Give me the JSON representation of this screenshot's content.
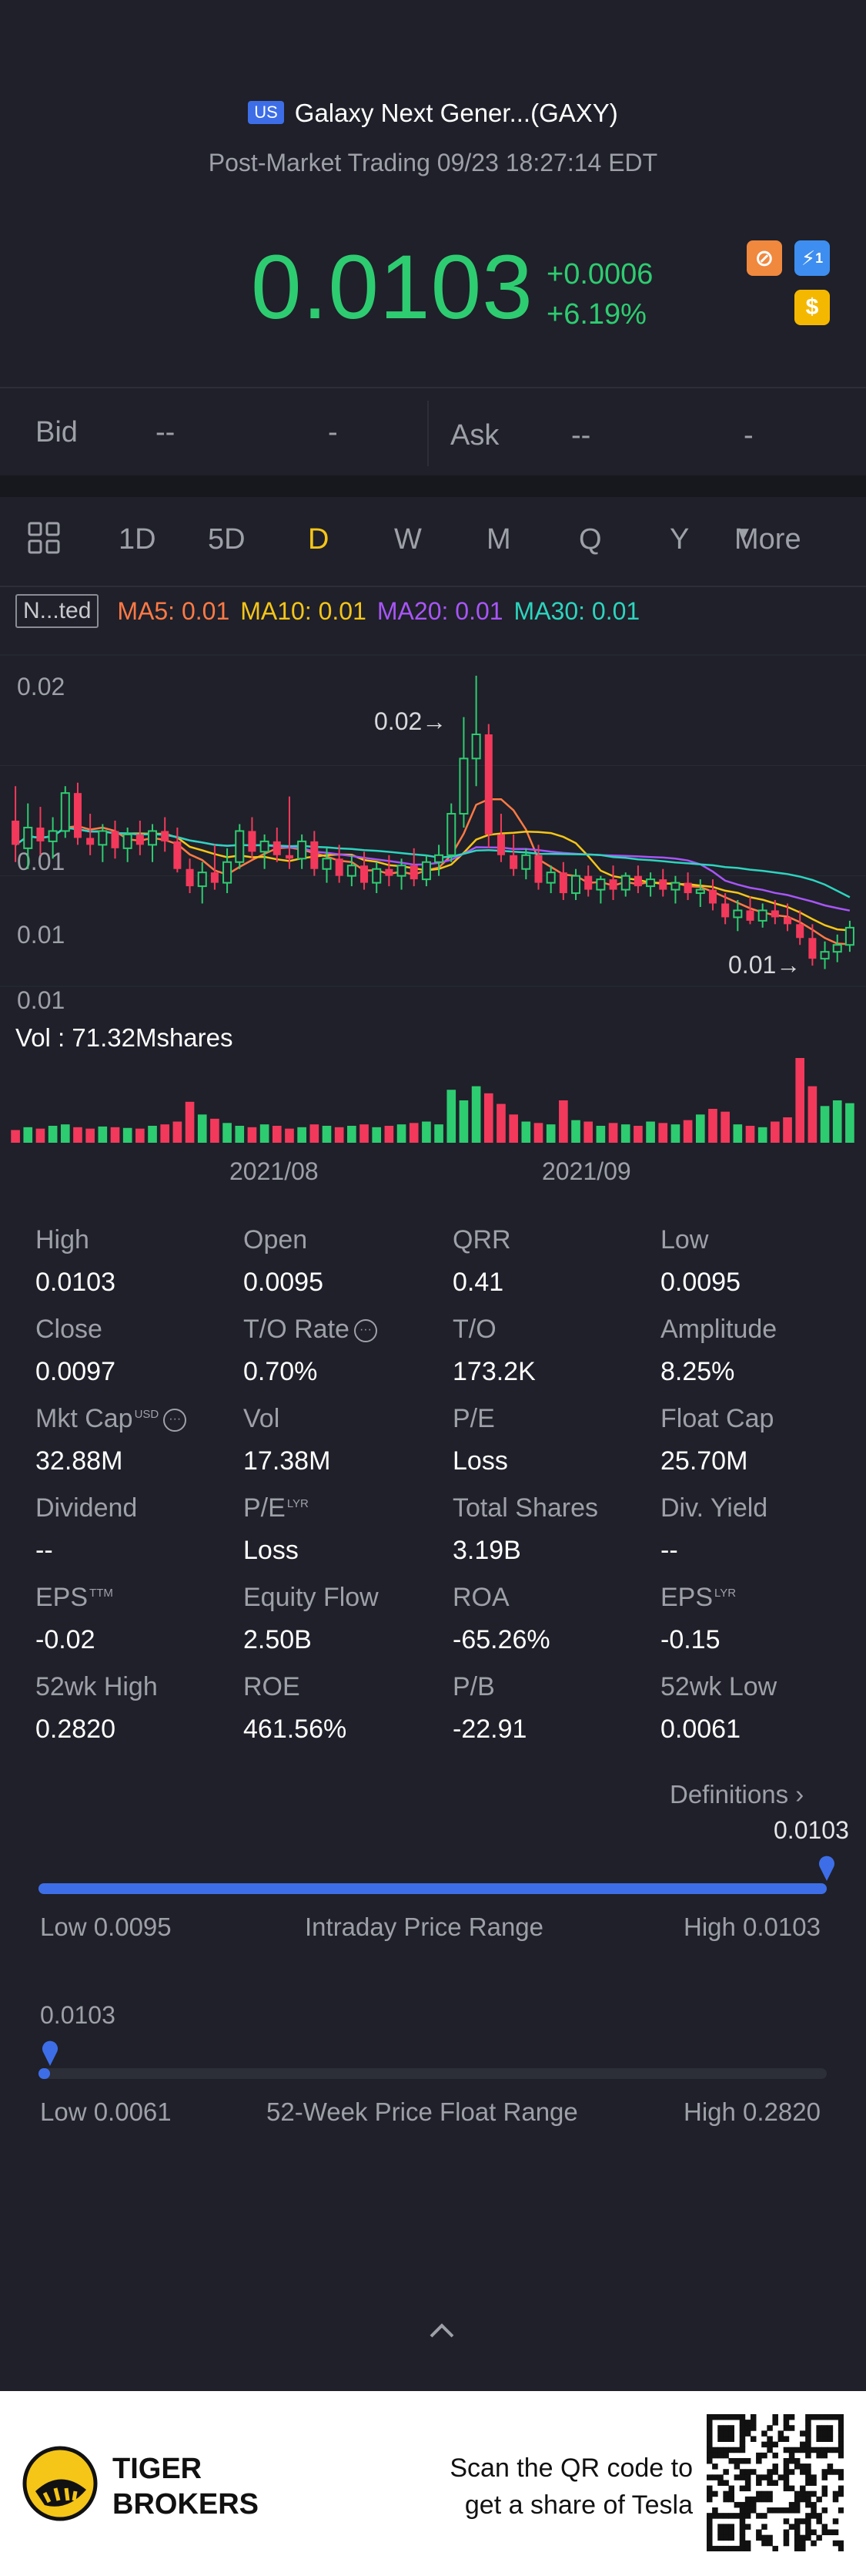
{
  "header": {
    "market_badge": "US",
    "title": "Galaxy Next Gener...(GAXY)",
    "subtitle": "Post-Market Trading 09/23 18:27:14 EDT"
  },
  "quote": {
    "price": "0.0103",
    "change": "+0.0006",
    "change_pct": "+6.19%",
    "up_color": "#2ecc71",
    "down_color": "#f2395b"
  },
  "badges": [
    {
      "name": "no-entry-icon",
      "glyph": "⊘",
      "color": "#f0883e"
    },
    {
      "name": "lightning-icon",
      "glyph": "⚡",
      "color": "#3d8ef0",
      "count": "1"
    },
    {
      "name": "dollar-icon",
      "glyph": "$",
      "color": "#f5b800"
    }
  ],
  "bidask": {
    "bid_label": "Bid",
    "bid_price": "--",
    "bid_size": "-",
    "ask_label": "Ask",
    "ask_price": "--",
    "ask_size": "-"
  },
  "periods": {
    "items": [
      "1D",
      "5D",
      "D",
      "W",
      "M",
      "Q",
      "Y"
    ],
    "active": "D",
    "more_label": "More",
    "active_color": "#f5c518"
  },
  "indicators": {
    "selector_label": "N...ted",
    "ma5": "MA5: 0.01",
    "ma10": "MA10: 0.01",
    "ma20": "MA20: 0.01",
    "ma30": "MA30: 0.01",
    "ma5_color": "#ff7a45",
    "ma10_color": "#f5c518",
    "ma20_color": "#a855f7",
    "ma30_color": "#2dd4bf"
  },
  "chart_data": {
    "type": "candlestick",
    "y_tick_labels": [
      "0.02",
      "0.01",
      "0.01",
      "0.01"
    ],
    "x_tick_labels": [
      "2021/08",
      "2021/09"
    ],
    "annotations": {
      "high_marker": "0.02→",
      "low_marker": "0.01→"
    },
    "volume_label": "Vol   : 71.32Mshares",
    "candles": [
      {
        "o": 0.012,
        "h": 0.013,
        "l": 0.0108,
        "c": 0.0113
      },
      {
        "o": 0.0112,
        "h": 0.0125,
        "l": 0.0106,
        "c": 0.0118
      },
      {
        "o": 0.0118,
        "h": 0.0124,
        "l": 0.011,
        "c": 0.0114
      },
      {
        "o": 0.0114,
        "h": 0.0121,
        "l": 0.0109,
        "c": 0.0117
      },
      {
        "o": 0.0117,
        "h": 0.013,
        "l": 0.0115,
        "c": 0.0128
      },
      {
        "o": 0.0128,
        "h": 0.0131,
        "l": 0.0113,
        "c": 0.0115
      },
      {
        "o": 0.0115,
        "h": 0.0122,
        "l": 0.011,
        "c": 0.0113
      },
      {
        "o": 0.0113,
        "h": 0.0119,
        "l": 0.0108,
        "c": 0.0117
      },
      {
        "o": 0.0117,
        "h": 0.012,
        "l": 0.0109,
        "c": 0.0112
      },
      {
        "o": 0.0112,
        "h": 0.0118,
        "l": 0.0108,
        "c": 0.0116
      },
      {
        "o": 0.0116,
        "h": 0.012,
        "l": 0.011,
        "c": 0.0113
      },
      {
        "o": 0.0113,
        "h": 0.0119,
        "l": 0.0108,
        "c": 0.0117
      },
      {
        "o": 0.0117,
        "h": 0.0121,
        "l": 0.0111,
        "c": 0.0114
      },
      {
        "o": 0.0114,
        "h": 0.0118,
        "l": 0.0105,
        "c": 0.0106
      },
      {
        "o": 0.0106,
        "h": 0.0109,
        "l": 0.0099,
        "c": 0.0101
      },
      {
        "o": 0.0101,
        "h": 0.0108,
        "l": 0.0096,
        "c": 0.0105
      },
      {
        "o": 0.0105,
        "h": 0.0113,
        "l": 0.01,
        "c": 0.0102
      },
      {
        "o": 0.0102,
        "h": 0.0112,
        "l": 0.0099,
        "c": 0.0108
      },
      {
        "o": 0.0108,
        "h": 0.0119,
        "l": 0.0106,
        "c": 0.0117
      },
      {
        "o": 0.0117,
        "h": 0.0121,
        "l": 0.0109,
        "c": 0.0111
      },
      {
        "o": 0.0111,
        "h": 0.0116,
        "l": 0.0106,
        "c": 0.0114
      },
      {
        "o": 0.0114,
        "h": 0.0118,
        "l": 0.0108,
        "c": 0.011
      },
      {
        "o": 0.011,
        "h": 0.0127,
        "l": 0.0106,
        "c": 0.0109
      },
      {
        "o": 0.0109,
        "h": 0.0116,
        "l": 0.0106,
        "c": 0.0114
      },
      {
        "o": 0.0114,
        "h": 0.0117,
        "l": 0.0104,
        "c": 0.0106
      },
      {
        "o": 0.0106,
        "h": 0.0112,
        "l": 0.0102,
        "c": 0.0109
      },
      {
        "o": 0.0109,
        "h": 0.0113,
        "l": 0.0102,
        "c": 0.0104
      },
      {
        "o": 0.0104,
        "h": 0.011,
        "l": 0.0101,
        "c": 0.0107
      },
      {
        "o": 0.0107,
        "h": 0.0111,
        "l": 0.01,
        "c": 0.0102
      },
      {
        "o": 0.0102,
        "h": 0.0108,
        "l": 0.0099,
        "c": 0.0106
      },
      {
        "o": 0.0106,
        "h": 0.011,
        "l": 0.0101,
        "c": 0.0104
      },
      {
        "o": 0.0104,
        "h": 0.0109,
        "l": 0.01,
        "c": 0.0107
      },
      {
        "o": 0.0107,
        "h": 0.0112,
        "l": 0.0101,
        "c": 0.0103
      },
      {
        "o": 0.0103,
        "h": 0.011,
        "l": 0.0101,
        "c": 0.0108
      },
      {
        "o": 0.0108,
        "h": 0.0113,
        "l": 0.0104,
        "c": 0.011
      },
      {
        "o": 0.011,
        "h": 0.0125,
        "l": 0.0108,
        "c": 0.0122
      },
      {
        "o": 0.0122,
        "h": 0.015,
        "l": 0.0118,
        "c": 0.0138
      },
      {
        "o": 0.0138,
        "h": 0.0162,
        "l": 0.013,
        "c": 0.0145
      },
      {
        "o": 0.0145,
        "h": 0.0148,
        "l": 0.0112,
        "c": 0.0116
      },
      {
        "o": 0.0116,
        "h": 0.0122,
        "l": 0.0108,
        "c": 0.011
      },
      {
        "o": 0.011,
        "h": 0.0116,
        "l": 0.0104,
        "c": 0.0106
      },
      {
        "o": 0.0106,
        "h": 0.0112,
        "l": 0.0103,
        "c": 0.011
      },
      {
        "o": 0.011,
        "h": 0.0113,
        "l": 0.01,
        "c": 0.0102
      },
      {
        "o": 0.0102,
        "h": 0.0107,
        "l": 0.0099,
        "c": 0.0105
      },
      {
        "o": 0.0105,
        "h": 0.0108,
        "l": 0.0097,
        "c": 0.0099
      },
      {
        "o": 0.0099,
        "h": 0.0106,
        "l": 0.0097,
        "c": 0.0104
      },
      {
        "o": 0.0104,
        "h": 0.0107,
        "l": 0.0098,
        "c": 0.01
      },
      {
        "o": 0.01,
        "h": 0.0104,
        "l": 0.0096,
        "c": 0.0103
      },
      {
        "o": 0.0103,
        "h": 0.0107,
        "l": 0.0097,
        "c": 0.01
      },
      {
        "o": 0.01,
        "h": 0.0105,
        "l": 0.0098,
        "c": 0.0104
      },
      {
        "o": 0.0104,
        "h": 0.0107,
        "l": 0.0099,
        "c": 0.0101
      },
      {
        "o": 0.0101,
        "h": 0.0105,
        "l": 0.0098,
        "c": 0.0103
      },
      {
        "o": 0.0103,
        "h": 0.0106,
        "l": 0.0098,
        "c": 0.01
      },
      {
        "o": 0.01,
        "h": 0.0104,
        "l": 0.0096,
        "c": 0.0102
      },
      {
        "o": 0.0102,
        "h": 0.0105,
        "l": 0.0097,
        "c": 0.0099
      },
      {
        "o": 0.0099,
        "h": 0.0103,
        "l": 0.0095,
        "c": 0.01
      },
      {
        "o": 0.01,
        "h": 0.0103,
        "l": 0.0094,
        "c": 0.0096
      },
      {
        "o": 0.0096,
        "h": 0.0099,
        "l": 0.009,
        "c": 0.0092
      },
      {
        "o": 0.0092,
        "h": 0.0097,
        "l": 0.0088,
        "c": 0.0094
      },
      {
        "o": 0.0094,
        "h": 0.0098,
        "l": 0.009,
        "c": 0.0091
      },
      {
        "o": 0.0091,
        "h": 0.0096,
        "l": 0.0089,
        "c": 0.0094
      },
      {
        "o": 0.0094,
        "h": 0.0097,
        "l": 0.009,
        "c": 0.0092
      },
      {
        "o": 0.0092,
        "h": 0.0096,
        "l": 0.0088,
        "c": 0.009
      },
      {
        "o": 0.009,
        "h": 0.0094,
        "l": 0.0084,
        "c": 0.0086
      },
      {
        "o": 0.0086,
        "h": 0.009,
        "l": 0.0078,
        "c": 0.008
      },
      {
        "o": 0.008,
        "h": 0.0085,
        "l": 0.0077,
        "c": 0.0082
      },
      {
        "o": 0.0082,
        "h": 0.0087,
        "l": 0.0079,
        "c": 0.0084
      },
      {
        "o": 0.0084,
        "h": 0.0091,
        "l": 0.0082,
        "c": 0.0089
      }
    ],
    "volumes": [
      18,
      22,
      20,
      24,
      26,
      22,
      20,
      23,
      22,
      21,
      20,
      24,
      26,
      30,
      58,
      40,
      34,
      28,
      24,
      22,
      26,
      24,
      20,
      22,
      26,
      24,
      22,
      24,
      26,
      22,
      24,
      26,
      28,
      30,
      26,
      75,
      60,
      80,
      70,
      55,
      40,
      30,
      28,
      26,
      60,
      32,
      30,
      24,
      28,
      26,
      24,
      30,
      28,
      26,
      32,
      40,
      48,
      44,
      26,
      24,
      22,
      30,
      36,
      120,
      80,
      52,
      60,
      56
    ]
  },
  "stats": {
    "rows": [
      [
        {
          "k": "High",
          "v": "0.0103"
        },
        {
          "k": "Open",
          "v": "0.0095"
        },
        {
          "k": "QRR",
          "v": "0.41"
        },
        {
          "k": "Low",
          "v": "0.0095"
        }
      ],
      [
        {
          "k": "Close",
          "v": "0.0097"
        },
        {
          "k": "T/O Rate",
          "v": "0.70%"
        },
        {
          "k": "T/O",
          "v": "173.2K"
        },
        {
          "k": "Amplitude",
          "v": "8.25%"
        }
      ],
      [
        {
          "k": "Mkt Cap",
          "v": "32.88M"
        },
        {
          "k": "Vol",
          "v": "17.38M"
        },
        {
          "k": "P/E",
          "v": "Loss"
        },
        {
          "k": "Float Cap",
          "v": "25.70M"
        }
      ],
      [
        {
          "k": "Dividend",
          "v": "--"
        },
        {
          "k": "P/E",
          "v": "Loss"
        },
        {
          "k": "Total Shares",
          "v": "3.19B"
        },
        {
          "k": "Div. Yield",
          "v": "--"
        }
      ],
      [
        {
          "k": "EPS",
          "v": "-0.02"
        },
        {
          "k": "Equity Flow",
          "v": "2.50B"
        },
        {
          "k": "ROA",
          "v": "-65.26%"
        },
        {
          "k": "EPS",
          "v": "-0.15"
        }
      ],
      [
        {
          "k": "52wk High",
          "v": "0.2820"
        },
        {
          "k": "ROE",
          "v": "461.56%"
        },
        {
          "k": "P/B",
          "v": "-22.91"
        },
        {
          "k": "52wk Low",
          "v": "0.0061"
        }
      ]
    ],
    "sup_usd": "USD",
    "sup_ttm": "TTM",
    "sup_lyr": "LYR",
    "definitions_label": "Definitions"
  },
  "intraday_range": {
    "marker_value": "0.0103",
    "low_label": "Low 0.0095",
    "title": "Intraday Price Range",
    "high_label": "High 0.0103",
    "position_fraction": 1.0
  },
  "week52_range": {
    "marker_value": "0.0103",
    "low_label": "Low 0.0061",
    "title": "52-Week Price Float Range",
    "high_label": "High 0.2820",
    "position_fraction": 0.015
  },
  "footer": {
    "brand_line1": "TIGER",
    "brand_line2": "BROKERS",
    "promo_line1": "Scan the QR code to",
    "promo_line2": "get a share of Tesla"
  }
}
